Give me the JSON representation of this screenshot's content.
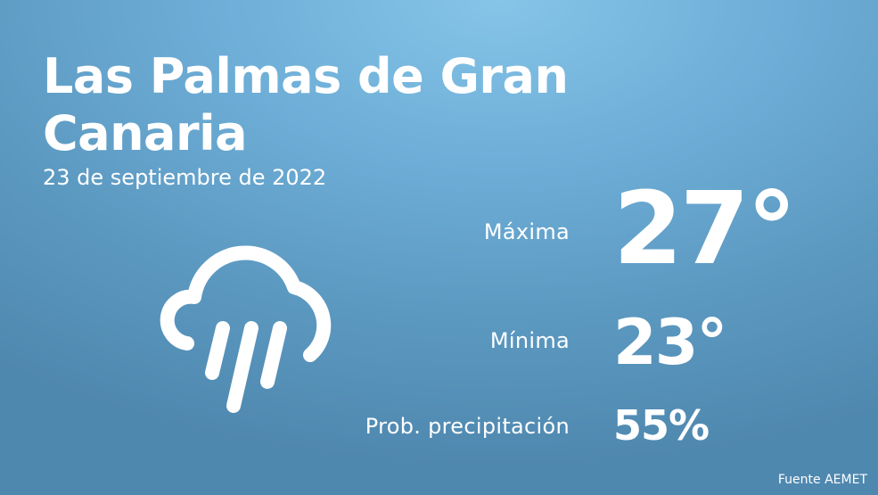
{
  "location": {
    "name": " Las Palmas de Gran Canaria",
    "date": "23 de septiembre de 2022"
  },
  "weather": {
    "icon": "rain-cloud-icon",
    "max_label": "Máxima",
    "max_value": "27°",
    "min_label": "Mínima",
    "min_value": "23°",
    "precip_label": "Prob. precipitación",
    "precip_value": "55%"
  },
  "footer": {
    "source": "Fuente AEMET"
  },
  "colors": {
    "background_light": "#86c5e8",
    "background_dark": "#4f88af",
    "text": "#ffffff"
  }
}
